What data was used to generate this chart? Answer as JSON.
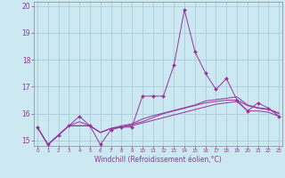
{
  "title": "",
  "xlabel": "Windchill (Refroidissement éolien,°C)",
  "background_color": "#cce8f0",
  "grid_color": "#aaccdd",
  "line_color": "#993399",
  "x": [
    0,
    1,
    2,
    3,
    4,
    5,
    6,
    7,
    8,
    9,
    10,
    11,
    12,
    13,
    14,
    15,
    16,
    17,
    18,
    19,
    20,
    21,
    22,
    23
  ],
  "y_main": [
    15.5,
    14.85,
    15.2,
    15.55,
    15.9,
    15.55,
    14.85,
    15.4,
    15.5,
    15.5,
    16.65,
    16.65,
    16.65,
    17.8,
    19.85,
    18.3,
    17.5,
    16.9,
    17.3,
    16.5,
    16.1,
    16.4,
    16.2,
    15.9
  ],
  "y_line2": [
    15.5,
    14.85,
    15.2,
    15.55,
    15.55,
    15.55,
    15.3,
    15.45,
    15.5,
    15.55,
    15.65,
    15.75,
    15.85,
    15.95,
    16.05,
    16.15,
    16.25,
    16.35,
    16.4,
    16.45,
    16.1,
    16.1,
    16.05,
    15.9
  ],
  "y_line3": [
    15.5,
    14.85,
    15.2,
    15.55,
    15.55,
    15.55,
    15.3,
    15.45,
    15.5,
    15.6,
    15.7,
    15.85,
    16.0,
    16.1,
    16.2,
    16.3,
    16.4,
    16.45,
    16.5,
    16.5,
    16.3,
    16.2,
    16.15,
    16.0
  ],
  "y_line4": [
    15.5,
    14.85,
    15.2,
    15.55,
    15.7,
    15.55,
    15.3,
    15.45,
    15.55,
    15.62,
    15.8,
    15.92,
    16.02,
    16.12,
    16.22,
    16.32,
    16.47,
    16.52,
    16.57,
    16.62,
    16.32,
    16.22,
    16.17,
    16.02
  ],
  "ylim": [
    14.8,
    20.15
  ],
  "yticks": [
    15,
    16,
    17,
    18,
    19,
    20
  ],
  "xticks": [
    0,
    1,
    2,
    3,
    4,
    5,
    6,
    7,
    8,
    9,
    10,
    11,
    12,
    13,
    14,
    15,
    16,
    17,
    18,
    19,
    20,
    21,
    22,
    23
  ],
  "xlim": [
    -0.3,
    23.3
  ]
}
